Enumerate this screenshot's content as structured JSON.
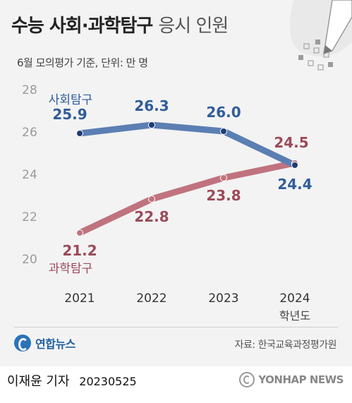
{
  "title": {
    "bold": "수능 사회·과학탐구",
    "light": "응시 인원"
  },
  "subtitle": "6월 모의평가 기준, 단위: 만 명",
  "footer": {
    "logo_text": "연합뉴스",
    "source": "자료: 한국교육과정평가원",
    "credit": "이재윤 기자",
    "date": "20230525",
    "watermark": "YONHAP NEWS"
  },
  "colors": {
    "social": "#5b7fb3",
    "science": "#c0737e",
    "social_label": "#2f5d9a",
    "science_label": "#9c4a59",
    "point_fill": "#1f3c73"
  },
  "chart_data": {
    "type": "line",
    "x": [
      "2021",
      "2022",
      "2023",
      "2024"
    ],
    "x_unit_label": "학년도",
    "ylim": [
      20,
      28
    ],
    "yticks": [
      20,
      22,
      24,
      26,
      28
    ],
    "grid": false,
    "series": [
      {
        "name": "사회탐구",
        "values": [
          25.9,
          26.3,
          26.0,
          24.4
        ],
        "labels": [
          "25.9",
          "26.3",
          "26.0",
          "24.4"
        ]
      },
      {
        "name": "과학탐구",
        "values": [
          21.2,
          22.8,
          23.8,
          24.5
        ],
        "labels": [
          "21.2",
          "22.8",
          "23.8",
          "24.5"
        ]
      }
    ]
  }
}
